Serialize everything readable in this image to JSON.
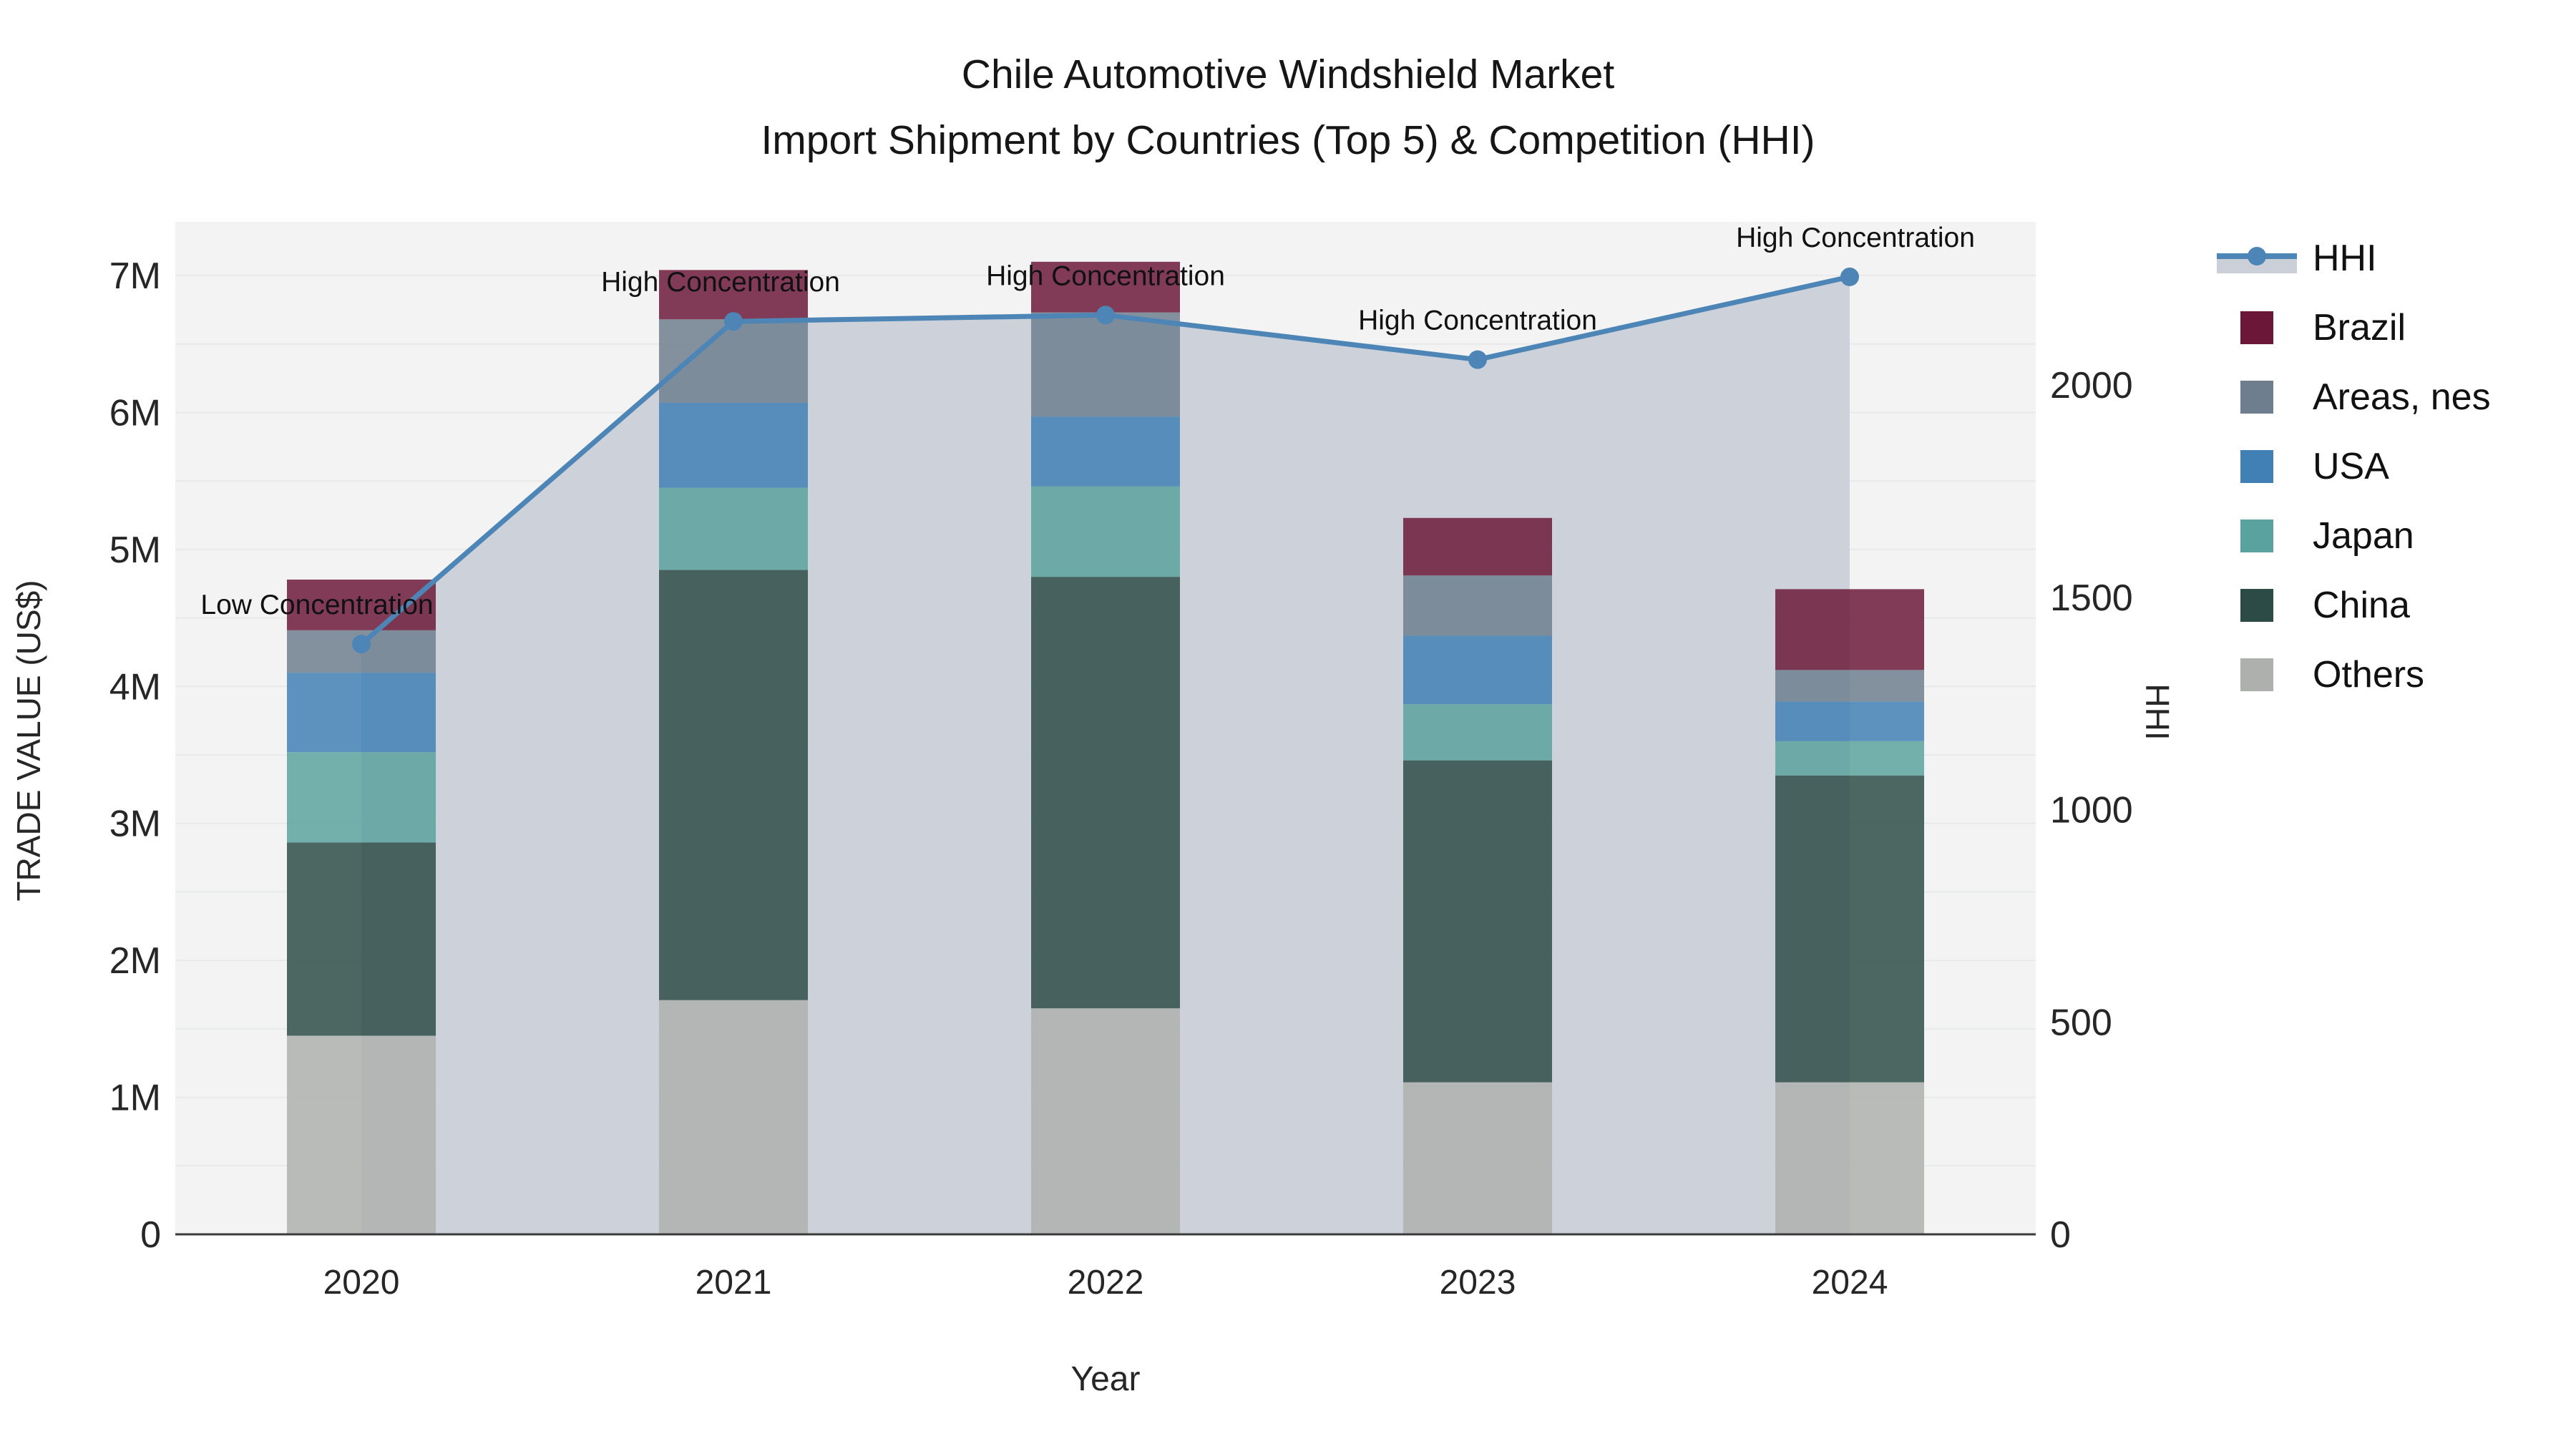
{
  "title": {
    "line1": "Chile Automotive Windshield Market",
    "line2": "Import Shipment by Countries (Top 5) & Competition (HHI)"
  },
  "axes": {
    "x_title": "Year",
    "y_left_title": "TRADE VALUE (US$)",
    "y_right_title": "HHI",
    "y_left_ticks": [
      "0",
      "1M",
      "2M",
      "3M",
      "4M",
      "5M",
      "6M",
      "7M"
    ],
    "y_left_tick_values": [
      0,
      1,
      2,
      3,
      4,
      5,
      6,
      7
    ],
    "y_right_ticks": [
      "0",
      "500",
      "1000",
      "1500",
      "2000"
    ],
    "y_right_tick_values": [
      0,
      500,
      1000,
      1500,
      2000
    ]
  },
  "legend": {
    "items": [
      {
        "id": "hhi",
        "label": "HHI",
        "type": "line"
      },
      {
        "id": "brazil",
        "label": "Brazil",
        "type": "square"
      },
      {
        "id": "areas_nes",
        "label": "Areas, nes",
        "type": "square"
      },
      {
        "id": "usa",
        "label": "USA",
        "type": "square"
      },
      {
        "id": "japan",
        "label": "Japan",
        "type": "square"
      },
      {
        "id": "china",
        "label": "China",
        "type": "square"
      },
      {
        "id": "others",
        "label": "Others",
        "type": "square"
      }
    ]
  },
  "colors": {
    "plot_bg": "#f2f3f2",
    "grid": "#e8eaea",
    "axis_line": "#3b3b3b",
    "tick_text": "#262626",
    "annotation_text": "#111111",
    "hhi_line": "#4d86b6",
    "hhi_area": "#cacfd8",
    "brazil": "#6b1838",
    "areas_nes": "#6e7e8e",
    "usa": "#4080b4",
    "japan": "#5aa29d",
    "china": "#2c4b46",
    "others": "#aeb0ae"
  },
  "chart_data": {
    "type": "bar",
    "subtype": "stacked-bar-with-line",
    "categories": [
      "2020",
      "2021",
      "2022",
      "2023",
      "2024"
    ],
    "xlabel": "Year",
    "ylabel": "TRADE VALUE (US$)",
    "y2label": "HHI",
    "ylim": [
      0,
      7.4
    ],
    "y2lim": [
      0,
      2386
    ],
    "grid": true,
    "legend_position": "right",
    "unit": "millions US$",
    "stack_order_bottom_to_top": [
      "others",
      "china",
      "japan",
      "usa",
      "areas_nes",
      "brazil"
    ],
    "series": [
      {
        "id": "brazil",
        "name": "Brazil",
        "values": [
          0.37,
          0.36,
          0.37,
          0.42,
          0.59
        ]
      },
      {
        "id": "areas_nes",
        "name": "Areas, nes",
        "values": [
          0.31,
          0.61,
          0.76,
          0.44,
          0.23
        ]
      },
      {
        "id": "usa",
        "name": "USA",
        "values": [
          0.58,
          0.62,
          0.51,
          0.5,
          0.29
        ]
      },
      {
        "id": "japan",
        "name": "Japan",
        "values": [
          0.66,
          0.6,
          0.66,
          0.41,
          0.25
        ]
      },
      {
        "id": "china",
        "name": "China",
        "values": [
          1.41,
          3.14,
          3.15,
          2.35,
          2.24
        ]
      },
      {
        "id": "others",
        "name": "Others",
        "values": [
          1.45,
          1.71,
          1.65,
          1.11,
          1.11
        ]
      }
    ],
    "bar_totals": [
      4.78,
      7.04,
      7.1,
      5.23,
      4.71
    ],
    "line_series": {
      "id": "hhi",
      "name": "HHI",
      "values": [
        1390,
        2150,
        2165,
        2060,
        2255
      ],
      "area_fill": true
    },
    "annotations": [
      {
        "year": "2020",
        "text": "Low Concentration",
        "dx": -62
      },
      {
        "year": "2021",
        "text": "High Concentration",
        "dx": -18
      },
      {
        "year": "2022",
        "text": "High Concentration",
        "dx": 0
      },
      {
        "year": "2023",
        "text": "High Concentration",
        "dx": 0
      },
      {
        "year": "2024",
        "text": "High Concentration",
        "dx": 8
      }
    ]
  }
}
